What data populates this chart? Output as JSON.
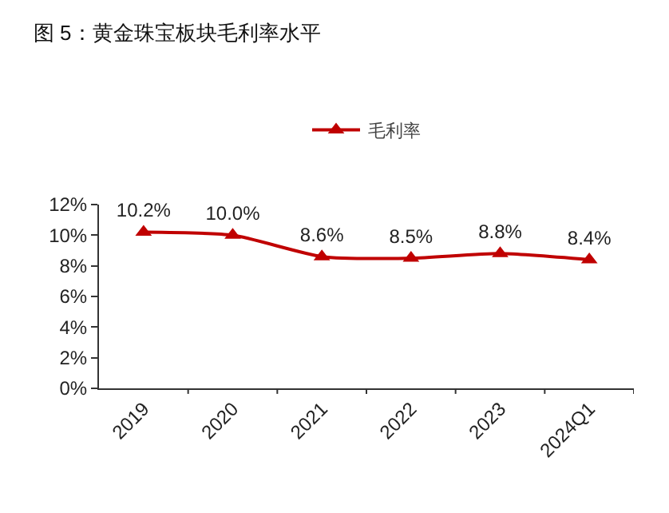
{
  "chart_data": {
    "type": "line",
    "title": "图 5：黄金珠宝板块毛利率水平",
    "categories": [
      "2019",
      "2020",
      "2021",
      "2022",
      "2023",
      "2024Q1"
    ],
    "series": [
      {
        "name": "毛利率",
        "color": "#c00000",
        "values": [
          10.2,
          10.0,
          8.6,
          8.5,
          8.8,
          8.4
        ],
        "value_labels": [
          "10.2%",
          "10.0%",
          "8.6%",
          "8.5%",
          "8.8%",
          "8.4%"
        ]
      }
    ],
    "ylim": [
      0,
      12
    ],
    "yticks": [
      {
        "value": 0,
        "label": "0%"
      },
      {
        "value": 2,
        "label": "2%"
      },
      {
        "value": 4,
        "label": "4%"
      },
      {
        "value": 6,
        "label": "6%"
      },
      {
        "value": 8,
        "label": "8%"
      },
      {
        "value": 10,
        "label": "10%"
      },
      {
        "value": 12,
        "label": "12%"
      }
    ],
    "legend": "top",
    "marker": "triangle",
    "line_style": "solid"
  }
}
